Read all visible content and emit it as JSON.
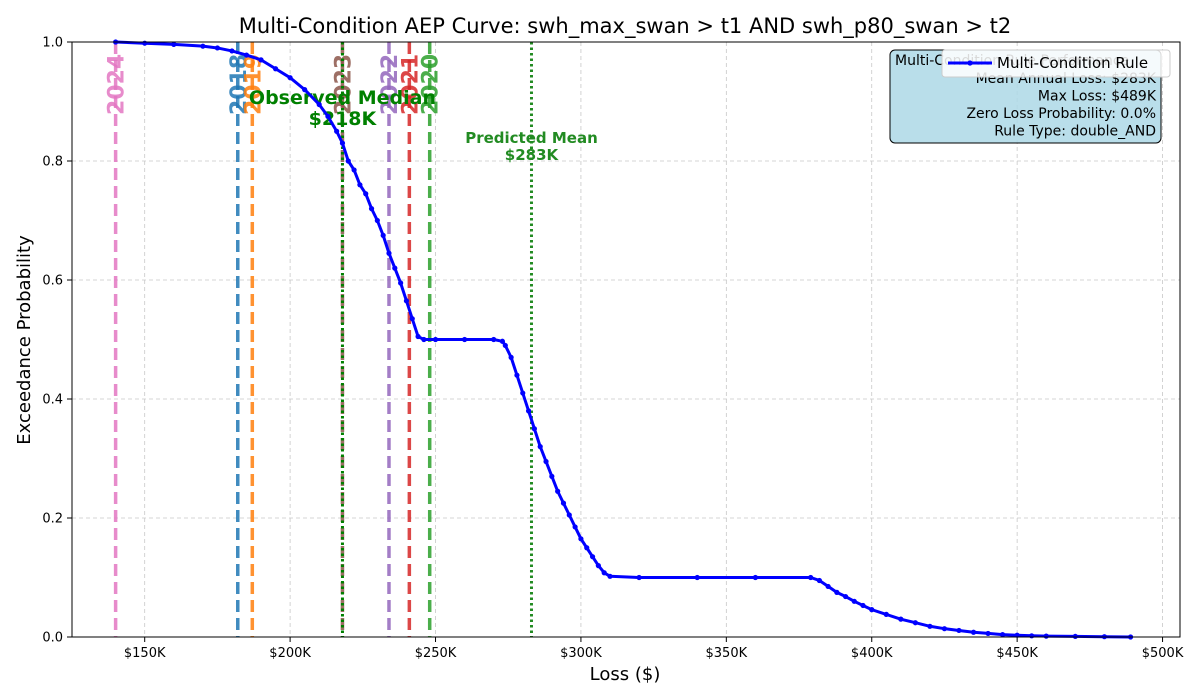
{
  "chart_data": {
    "type": "line",
    "title": "Multi-Condition AEP Curve: swh_max_swan > t1 AND swh_p80_swan > t2",
    "xlabel": "Loss ($)",
    "ylabel": "Exceedance Probability",
    "xlim": [
      125000,
      506000
    ],
    "ylim": [
      0,
      1.0
    ],
    "xticks": [
      150000,
      200000,
      250000,
      300000,
      350000,
      400000,
      450000,
      500000
    ],
    "xtick_labels": [
      "$150K",
      "$200K",
      "$250K",
      "$300K",
      "$350K",
      "$400K",
      "$450K",
      "$500K"
    ],
    "yticks": [
      0.0,
      0.2,
      0.4,
      0.6,
      0.8,
      1.0
    ],
    "ytick_labels": [
      "0.0",
      "0.2",
      "0.4",
      "0.6",
      "0.8",
      "1.0"
    ],
    "grid": true,
    "series": [
      {
        "name": "Multi-Condition Rule",
        "color": "#0000ff",
        "points": [
          [
            140000,
            1.0
          ],
          [
            150000,
            0.998
          ],
          [
            160000,
            0.996
          ],
          [
            170000,
            0.993
          ],
          [
            175000,
            0.99
          ],
          [
            180000,
            0.985
          ],
          [
            185000,
            0.978
          ],
          [
            190000,
            0.97
          ],
          [
            195000,
            0.955
          ],
          [
            200000,
            0.94
          ],
          [
            205000,
            0.92
          ],
          [
            210000,
            0.895
          ],
          [
            213000,
            0.875
          ],
          [
            216000,
            0.85
          ],
          [
            218000,
            0.83
          ],
          [
            220000,
            0.8
          ],
          [
            222000,
            0.785
          ],
          [
            224000,
            0.76
          ],
          [
            226000,
            0.745
          ],
          [
            228000,
            0.72
          ],
          [
            230000,
            0.7
          ],
          [
            232000,
            0.675
          ],
          [
            234000,
            0.645
          ],
          [
            236000,
            0.62
          ],
          [
            238000,
            0.595
          ],
          [
            240000,
            0.565
          ],
          [
            242000,
            0.535
          ],
          [
            244000,
            0.505
          ],
          [
            246000,
            0.5
          ],
          [
            250000,
            0.5
          ],
          [
            260000,
            0.5
          ],
          [
            270000,
            0.5
          ],
          [
            273000,
            0.497
          ],
          [
            274000,
            0.49
          ],
          [
            276000,
            0.47
          ],
          [
            278000,
            0.44
          ],
          [
            280000,
            0.41
          ],
          [
            282000,
            0.38
          ],
          [
            284000,
            0.35
          ],
          [
            286000,
            0.32
          ],
          [
            288000,
            0.295
          ],
          [
            290000,
            0.27
          ],
          [
            292000,
            0.245
          ],
          [
            294000,
            0.225
          ],
          [
            296000,
            0.205
          ],
          [
            298000,
            0.185
          ],
          [
            300000,
            0.165
          ],
          [
            302000,
            0.15
          ],
          [
            304000,
            0.135
          ],
          [
            306000,
            0.12
          ],
          [
            308000,
            0.108
          ],
          [
            310000,
            0.102
          ],
          [
            320000,
            0.1
          ],
          [
            340000,
            0.1
          ],
          [
            360000,
            0.1
          ],
          [
            379000,
            0.1
          ],
          [
            382000,
            0.095
          ],
          [
            385000,
            0.085
          ],
          [
            388000,
            0.075
          ],
          [
            391000,
            0.068
          ],
          [
            394000,
            0.06
          ],
          [
            397000,
            0.053
          ],
          [
            400000,
            0.046
          ],
          [
            405000,
            0.038
          ],
          [
            410000,
            0.03
          ],
          [
            415000,
            0.024
          ],
          [
            420000,
            0.018
          ],
          [
            425000,
            0.014
          ],
          [
            430000,
            0.011
          ],
          [
            435000,
            0.008
          ],
          [
            440000,
            0.006
          ],
          [
            445000,
            0.004
          ],
          [
            450000,
            0.003
          ],
          [
            455000,
            0.002
          ],
          [
            460000,
            0.0015
          ],
          [
            470000,
            0.001
          ],
          [
            480000,
            0.0005
          ],
          [
            489000,
            0.0
          ]
        ]
      }
    ],
    "year_lines": [
      {
        "label": "2024",
        "x": 140000,
        "color": "#e377c2"
      },
      {
        "label": "2018",
        "x": 182000,
        "color": "#1f77b4"
      },
      {
        "label": "2019",
        "x": 187000,
        "color": "#ff7f0e"
      },
      {
        "label": "2023",
        "x": 218000,
        "color": "#8c564b"
      },
      {
        "label": "2022",
        "x": 234000,
        "color": "#9467bd"
      },
      {
        "label": "2021",
        "x": 241000,
        "color": "#d62728"
      },
      {
        "label": "2020",
        "x": 248000,
        "color": "#2ca02c"
      }
    ],
    "reference_lines": [
      {
        "label": "Observed Median",
        "value_label": "$218K",
        "x": 218000,
        "color": "#008000",
        "style": "dotted"
      },
      {
        "label": "Predicted Mean",
        "value_label": "$283K",
        "x": 283000,
        "color": "#228b22",
        "style": "dotted"
      }
    ],
    "stats_box": {
      "title": "Multi-Condition Rule Performance",
      "lines": [
        "Mean Annual Loss: $283K",
        "Max Loss: $489K",
        "Zero Loss Probability: 0.0%",
        "Rule Type: double_AND"
      ],
      "background": "#add8e6"
    },
    "legend": {
      "position": "top-right",
      "entries": [
        "Multi-Condition Rule"
      ]
    }
  }
}
